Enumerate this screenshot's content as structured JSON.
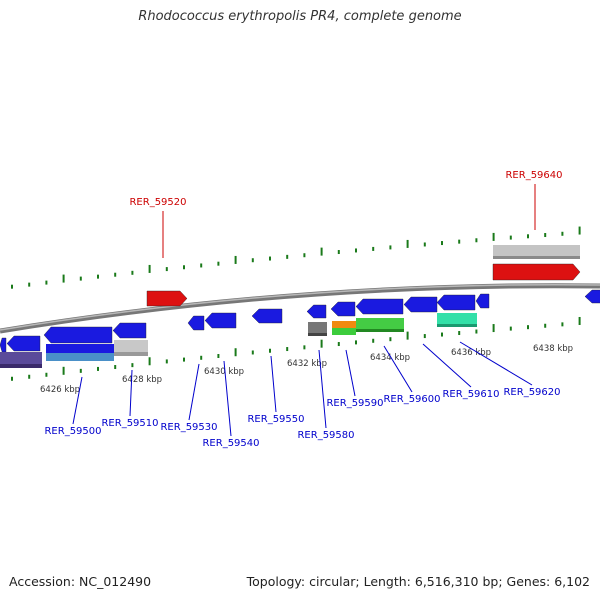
{
  "title": "Rhodococcus erythropolis PR4, complete genome",
  "footer": {
    "accession": "Accession: NC_012490",
    "summary": "Topology: circular; Length: 6,516,310 bp; Genes: 6,102"
  },
  "colors": {
    "forward_label": "#cc0000",
    "reverse_label": "#0000cc",
    "tick": "#1a7a1a",
    "backbone": "#888888"
  },
  "kbp_ticks": [
    {
      "label": "6426 kbp"
    },
    {
      "label": "6428 kbp"
    },
    {
      "label": "6430 kbp"
    },
    {
      "label": "6432 kbp"
    },
    {
      "label": "6434 kbp"
    },
    {
      "label": "6436 kbp"
    },
    {
      "label": "6438 kbp"
    }
  ],
  "forward_genes": [
    {
      "name": "RER_59520",
      "color": "#dd1111"
    },
    {
      "name": "RER_59640",
      "color": "#dd1111"
    }
  ],
  "reverse_genes": [
    {
      "name": "RER_59500",
      "color": "#1111cc"
    },
    {
      "name": "RER_59510",
      "color": "#1111cc"
    },
    {
      "name": "RER_59530",
      "color": "#1111cc"
    },
    {
      "name": "RER_59540",
      "color": "#1111cc"
    },
    {
      "name": "RER_59550",
      "color": "#1111cc"
    },
    {
      "name": "RER_59580",
      "color": "#1111cc"
    },
    {
      "name": "RER_59590",
      "color": "#1111cc"
    },
    {
      "name": "RER_59600",
      "color": "#1111cc"
    },
    {
      "name": "RER_59610",
      "color": "#1111cc"
    },
    {
      "name": "RER_59620",
      "color": "#1111cc"
    }
  ]
}
